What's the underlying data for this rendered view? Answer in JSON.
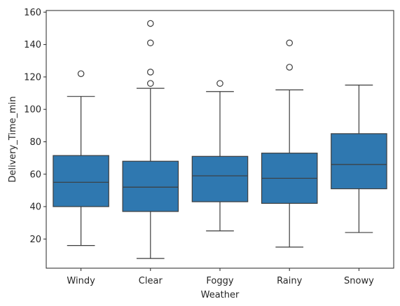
{
  "chart_data": {
    "type": "box",
    "xlabel": "Weather",
    "ylabel": "Delivery_Time_min",
    "ylim": [
      2,
      161
    ],
    "yticks": [
      20,
      40,
      60,
      80,
      100,
      120,
      140,
      160
    ],
    "grid": false,
    "box_color": "#2f78b0",
    "line_color": "#3d3d3d",
    "categories": [
      "Windy",
      "Clear",
      "Foggy",
      "Rainy",
      "Snowy"
    ],
    "boxes": [
      {
        "category": "Windy",
        "whisker_low": 16,
        "q1": 40,
        "median": 55,
        "q3": 71.5,
        "whisker_high": 108,
        "outliers": [
          122
        ]
      },
      {
        "category": "Clear",
        "whisker_low": 8,
        "q1": 37,
        "median": 52,
        "q3": 68,
        "whisker_high": 113,
        "outliers": [
          116,
          123,
          141,
          153
        ]
      },
      {
        "category": "Foggy",
        "whisker_low": 25,
        "q1": 43,
        "median": 59,
        "q3": 71,
        "whisker_high": 111,
        "outliers": [
          116
        ]
      },
      {
        "category": "Rainy",
        "whisker_low": 15,
        "q1": 42,
        "median": 57.5,
        "q3": 73,
        "whisker_high": 112,
        "outliers": [
          126,
          141
        ]
      },
      {
        "category": "Snowy",
        "whisker_low": 24,
        "q1": 51,
        "median": 66,
        "q3": 85,
        "whisker_high": 115,
        "outliers": []
      }
    ]
  }
}
